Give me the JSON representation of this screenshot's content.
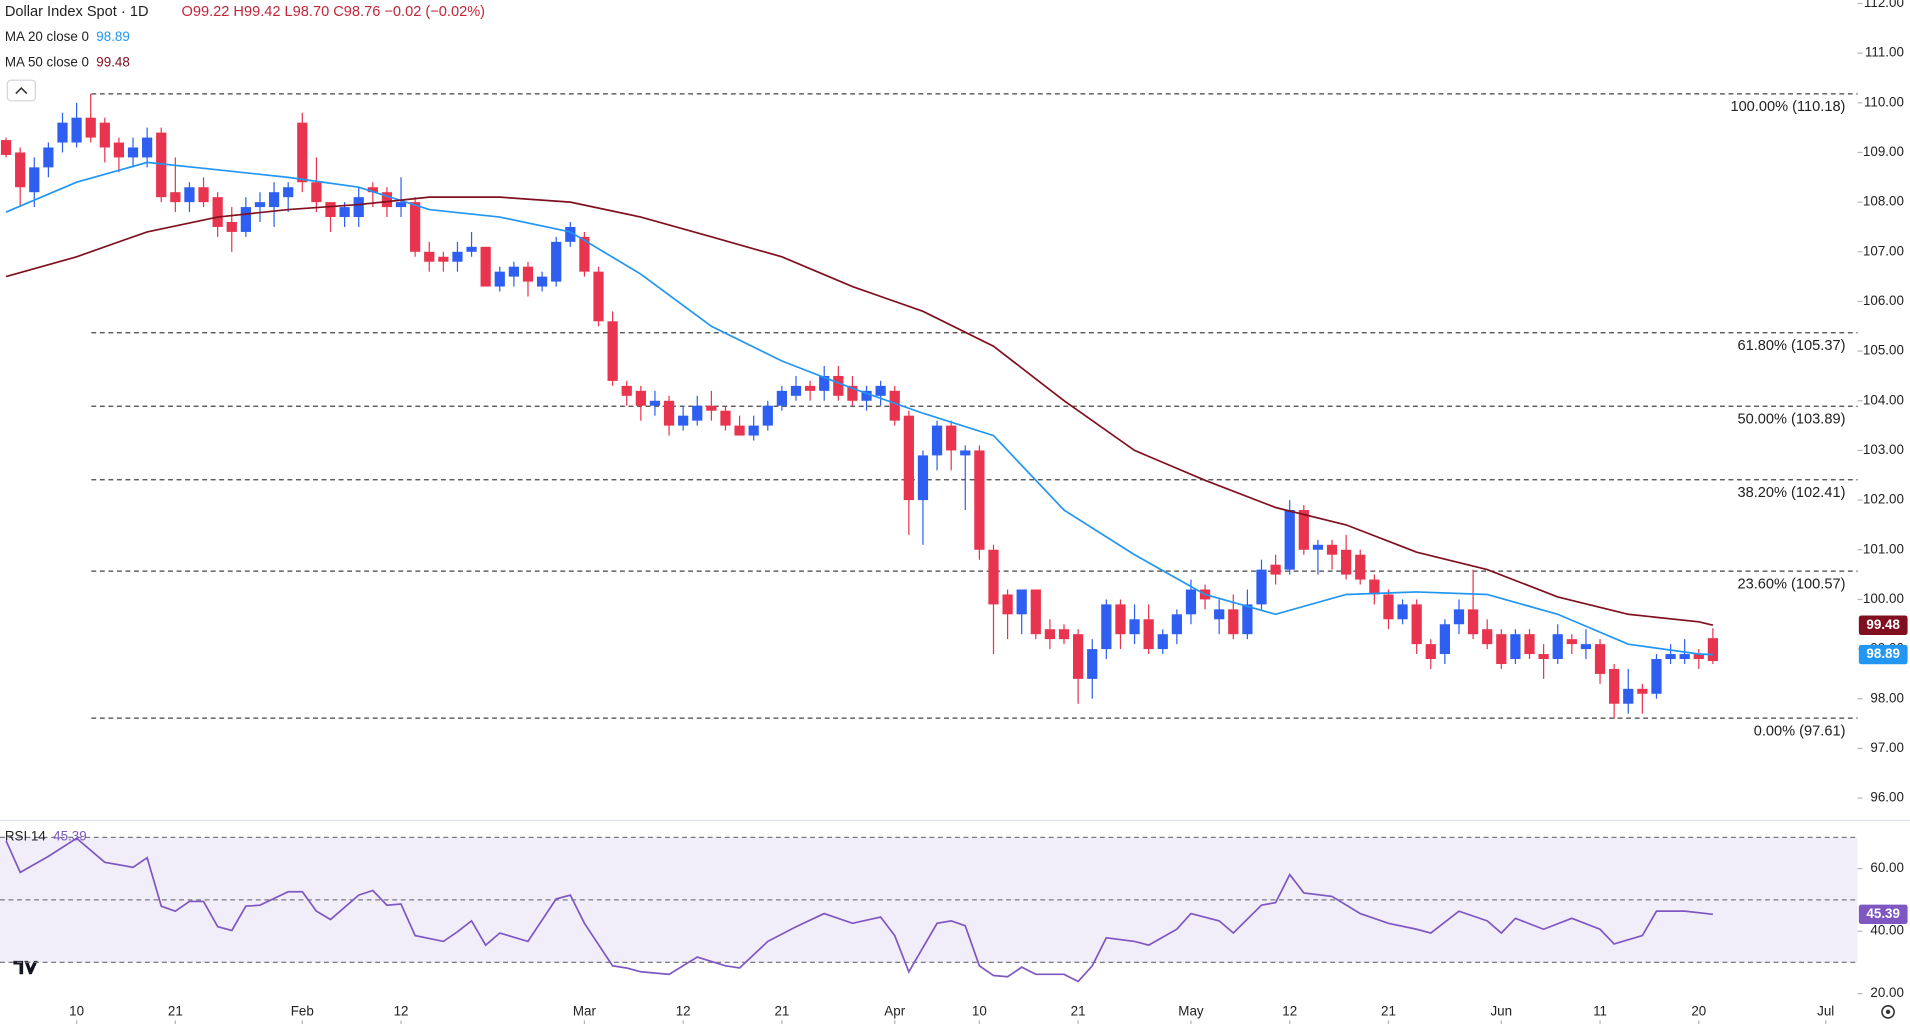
{
  "chart_data": [
    {
      "type": "candlestick",
      "title": "Dollar Index Spot · 1D",
      "subtitle": "O99.22 H99.42 L98.70 C98.76 −0.02 (−0.02%)",
      "up_color": "#2e5ff0",
      "down_color": "#e8344e",
      "candles": [
        [
          109.25,
          109.3,
          108.9,
          108.95
        ],
        [
          109.0,
          109.1,
          107.9,
          108.3
        ],
        [
          108.2,
          108.9,
          107.9,
          108.7
        ],
        [
          108.7,
          109.2,
          108.5,
          109.1
        ],
        [
          109.2,
          109.8,
          109.0,
          109.6
        ],
        [
          109.2,
          110.0,
          109.1,
          109.7
        ],
        [
          109.7,
          110.18,
          109.2,
          109.3
        ],
        [
          109.6,
          109.7,
          108.8,
          109.1
        ],
        [
          109.2,
          109.3,
          108.6,
          108.9
        ],
        [
          108.9,
          109.3,
          108.7,
          109.1
        ],
        [
          108.9,
          109.5,
          108.7,
          109.3
        ],
        [
          109.4,
          109.5,
          108.0,
          108.1
        ],
        [
          108.2,
          108.9,
          107.8,
          108.0
        ],
        [
          108.0,
          108.4,
          107.8,
          108.3
        ],
        [
          108.3,
          108.5,
          107.9,
          108.0
        ],
        [
          108.1,
          108.2,
          107.3,
          107.5
        ],
        [
          107.6,
          107.9,
          107.0,
          107.4
        ],
        [
          107.4,
          108.1,
          107.3,
          107.9
        ],
        [
          107.9,
          108.2,
          107.6,
          108.0
        ],
        [
          107.9,
          108.4,
          107.5,
          108.2
        ],
        [
          108.1,
          108.4,
          107.8,
          108.3
        ],
        [
          109.6,
          109.8,
          108.2,
          108.4
        ],
        [
          108.4,
          108.9,
          107.8,
          108.0
        ],
        [
          108.0,
          108.0,
          107.4,
          107.7
        ],
        [
          107.7,
          108.0,
          107.5,
          107.9
        ],
        [
          107.7,
          108.3,
          107.5,
          108.1
        ],
        [
          108.3,
          108.4,
          107.9,
          108.2
        ],
        [
          108.2,
          108.3,
          107.7,
          107.9
        ],
        [
          107.9,
          108.5,
          107.7,
          108.0
        ],
        [
          108.0,
          108.1,
          106.9,
          107.0
        ],
        [
          107.0,
          107.2,
          106.6,
          106.8
        ],
        [
          106.9,
          107.0,
          106.6,
          106.8
        ],
        [
          106.8,
          107.2,
          106.6,
          107.0
        ],
        [
          107.0,
          107.4,
          106.9,
          107.1
        ],
        [
          107.1,
          107.1,
          106.3,
          106.3
        ],
        [
          106.3,
          106.7,
          106.2,
          106.6
        ],
        [
          106.5,
          106.8,
          106.3,
          106.7
        ],
        [
          106.7,
          106.8,
          106.1,
          106.4
        ],
        [
          106.3,
          106.6,
          106.2,
          106.5
        ],
        [
          106.4,
          107.3,
          106.3,
          107.2
        ],
        [
          107.2,
          107.6,
          107.1,
          107.5
        ],
        [
          107.3,
          107.4,
          106.5,
          106.6
        ],
        [
          106.6,
          106.7,
          105.5,
          105.6
        ],
        [
          105.6,
          105.8,
          104.3,
          104.4
        ],
        [
          104.3,
          104.4,
          103.9,
          104.1
        ],
        [
          104.2,
          104.3,
          103.6,
          103.9
        ],
        [
          103.9,
          104.2,
          103.7,
          104.0
        ],
        [
          104.0,
          104.1,
          103.3,
          103.5
        ],
        [
          103.5,
          103.9,
          103.4,
          103.7
        ],
        [
          103.6,
          104.1,
          103.5,
          103.9
        ],
        [
          103.9,
          104.2,
          103.6,
          103.8
        ],
        [
          103.8,
          103.9,
          103.4,
          103.5
        ],
        [
          103.5,
          103.7,
          103.3,
          103.3
        ],
        [
          103.3,
          103.7,
          103.2,
          103.5
        ],
        [
          103.5,
          104.0,
          103.4,
          103.9
        ],
        [
          103.9,
          104.3,
          103.8,
          104.2
        ],
        [
          104.1,
          104.5,
          104.0,
          104.3
        ],
        [
          104.3,
          104.4,
          104.0,
          104.2
        ],
        [
          104.2,
          104.7,
          104.0,
          104.5
        ],
        [
          104.5,
          104.7,
          104.0,
          104.1
        ],
        [
          104.3,
          104.5,
          103.9,
          104.0
        ],
        [
          104.0,
          104.3,
          103.8,
          104.2
        ],
        [
          104.1,
          104.4,
          103.9,
          104.3
        ],
        [
          104.2,
          104.3,
          103.5,
          103.6
        ],
        [
          103.7,
          103.8,
          101.3,
          102.0
        ],
        [
          102.0,
          103.0,
          101.1,
          102.9
        ],
        [
          102.9,
          103.6,
          102.6,
          103.5
        ],
        [
          103.5,
          103.6,
          102.6,
          103.0
        ],
        [
          102.9,
          103.1,
          101.8,
          103.0
        ],
        [
          103.0,
          103.1,
          100.8,
          101.0
        ],
        [
          101.0,
          101.1,
          98.9,
          99.9
        ],
        [
          100.1,
          100.2,
          99.2,
          99.7
        ],
        [
          99.7,
          100.2,
          99.3,
          100.2
        ],
        [
          100.2,
          100.2,
          99.2,
          99.3
        ],
        [
          99.4,
          99.6,
          99.0,
          99.2
        ],
        [
          99.4,
          99.5,
          99.1,
          99.2
        ],
        [
          99.3,
          99.4,
          97.9,
          98.4
        ],
        [
          98.4,
          99.2,
          98.0,
          99.0
        ],
        [
          99.0,
          100.0,
          98.8,
          99.9
        ],
        [
          99.9,
          100.0,
          99.0,
          99.3
        ],
        [
          99.3,
          99.9,
          99.1,
          99.6
        ],
        [
          99.6,
          99.9,
          98.9,
          99.0
        ],
        [
          99.0,
          99.4,
          98.9,
          99.3
        ],
        [
          99.3,
          99.8,
          99.1,
          99.7
        ],
        [
          99.7,
          100.4,
          99.5,
          100.2
        ],
        [
          100.2,
          100.3,
          99.8,
          100.0
        ],
        [
          99.6,
          100.0,
          99.3,
          99.8
        ],
        [
          99.8,
          100.1,
          99.2,
          99.3
        ],
        [
          99.3,
          100.2,
          99.2,
          99.9
        ],
        [
          99.9,
          100.8,
          99.8,
          100.6
        ],
        [
          100.7,
          100.9,
          100.3,
          100.5
        ],
        [
          100.6,
          102.0,
          100.5,
          101.8
        ],
        [
          101.8,
          101.9,
          100.9,
          101.0
        ],
        [
          101.0,
          101.2,
          100.5,
          101.1
        ],
        [
          101.1,
          101.2,
          100.6,
          100.9
        ],
        [
          101.0,
          101.3,
          100.4,
          100.5
        ],
        [
          100.9,
          101.0,
          100.3,
          100.4
        ],
        [
          100.4,
          100.5,
          99.9,
          100.1
        ],
        [
          100.1,
          100.2,
          99.4,
          99.6
        ],
        [
          99.6,
          100.0,
          99.5,
          99.9
        ],
        [
          99.9,
          100.0,
          98.9,
          99.1
        ],
        [
          99.1,
          99.2,
          98.6,
          98.8
        ],
        [
          98.9,
          99.6,
          98.7,
          99.5
        ],
        [
          99.5,
          100.0,
          99.3,
          99.8
        ],
        [
          99.8,
          100.6,
          99.2,
          99.3
        ],
        [
          99.4,
          99.6,
          99.0,
          99.1
        ],
        [
          99.3,
          99.4,
          98.6,
          98.7
        ],
        [
          98.8,
          99.4,
          98.7,
          99.3
        ],
        [
          99.3,
          99.4,
          98.8,
          98.9
        ],
        [
          98.9,
          99.1,
          98.4,
          98.8
        ],
        [
          98.8,
          99.5,
          98.7,
          99.3
        ],
        [
          99.2,
          99.3,
          98.9,
          99.1
        ],
        [
          99.0,
          99.4,
          98.8,
          99.1
        ],
        [
          99.1,
          99.2,
          98.3,
          98.5
        ],
        [
          98.6,
          98.7,
          97.6,
          97.9
        ],
        [
          97.9,
          98.6,
          97.7,
          98.2
        ],
        [
          98.2,
          98.3,
          97.7,
          98.1
        ],
        [
          98.1,
          98.9,
          98.0,
          98.8
        ],
        [
          98.8,
          99.1,
          98.7,
          98.9
        ],
        [
          98.8,
          99.2,
          98.7,
          98.9
        ],
        [
          98.9,
          99.0,
          98.6,
          98.8
        ],
        [
          99.22,
          99.42,
          98.7,
          98.76
        ]
      ],
      "series": [
        {
          "name": "MA 20 close 0",
          "color": "#2196f3",
          "last_label": "98.89",
          "x": [
            0,
            5,
            10,
            15,
            20,
            25,
            30,
            35,
            40,
            45,
            50,
            55,
            60,
            65,
            70,
            75,
            80,
            85,
            90,
            95,
            100,
            105,
            110,
            115,
            120,
            121
          ],
          "values": [
            107.8,
            108.4,
            108.8,
            108.65,
            108.5,
            108.3,
            107.85,
            107.7,
            107.4,
            106.55,
            105.5,
            104.8,
            104.25,
            103.75,
            103.3,
            101.8,
            100.9,
            100.1,
            99.7,
            100.1,
            100.15,
            100.1,
            99.7,
            99.1,
            98.9,
            98.89
          ]
        },
        {
          "name": "MA 50 close 0",
          "color": "#801020",
          "last_label": "99.48",
          "x": [
            0,
            5,
            10,
            15,
            20,
            25,
            30,
            35,
            40,
            45,
            50,
            55,
            60,
            65,
            70,
            75,
            80,
            85,
            90,
            95,
            100,
            105,
            110,
            115,
            120,
            121
          ],
          "values": [
            106.5,
            106.9,
            107.4,
            107.7,
            107.85,
            107.95,
            108.1,
            108.1,
            108.0,
            107.7,
            107.3,
            106.9,
            106.3,
            105.8,
            105.1,
            104.0,
            103.0,
            102.4,
            101.85,
            101.5,
            100.95,
            100.6,
            100.05,
            99.7,
            99.55,
            99.48
          ]
        }
      ],
      "levels": [
        {
          "value": 110.18,
          "label": "100.00% (110.18)"
        },
        {
          "value": 105.37,
          "label": "61.80% (105.37)"
        },
        {
          "value": 103.89,
          "label": "50.00% (103.89)"
        },
        {
          "value": 102.41,
          "label": "38.20% (102.41)"
        },
        {
          "value": 100.57,
          "label": "23.60% (100.57)"
        },
        {
          "value": 97.61,
          "label": "0.00% (97.61)"
        }
      ],
      "xlim": [
        -0.43,
        131.26
      ],
      "ylim": [
        95.56,
        112.07
      ],
      "yticks": [
        {
          "value": 96,
          "label": "96.00"
        },
        {
          "value": 97,
          "label": "97.00"
        },
        {
          "value": 98,
          "label": "98.00"
        },
        {
          "value": 99,
          "label": "99.00"
        },
        {
          "value": 100,
          "label": "100.00"
        },
        {
          "value": 101,
          "label": "101.00"
        },
        {
          "value": 102,
          "label": "102.00"
        },
        {
          "value": 103,
          "label": "103.00"
        },
        {
          "value": 104,
          "label": "104.00"
        },
        {
          "value": 105,
          "label": "105.00"
        },
        {
          "value": 106,
          "label": "106.00"
        },
        {
          "value": 107,
          "label": "107.00"
        },
        {
          "value": 108,
          "label": "108.00"
        },
        {
          "value": 109,
          "label": "109.00"
        },
        {
          "value": 110,
          "label": "110.00"
        },
        {
          "value": 111,
          "label": "111.00"
        },
        {
          "value": 112,
          "label": "112.00"
        }
      ]
    },
    {
      "type": "line",
      "title": "RSI 14",
      "last_label": "45.39",
      "color": "#7e57c2",
      "levels": [
        70,
        50,
        30
      ],
      "x": [
        0,
        1,
        3,
        5,
        7,
        9,
        10,
        11,
        12,
        13,
        14,
        15,
        16,
        17,
        18,
        20,
        21,
        22,
        23,
        25,
        26,
        27,
        28,
        29,
        31,
        32,
        33,
        34,
        35,
        37,
        39,
        40,
        41,
        43,
        44,
        45,
        47,
        49,
        51,
        52,
        54,
        56,
        58,
        60,
        62,
        63,
        64,
        66,
        67,
        68,
        69,
        70,
        71,
        72,
        73,
        75,
        76,
        77,
        78,
        80,
        81,
        83,
        84,
        86,
        87,
        89,
        90,
        91,
        92,
        94,
        96,
        98,
        100,
        101,
        103,
        105,
        106,
        107,
        109,
        111,
        113,
        114,
        116,
        117,
        119,
        121
      ],
      "values": [
        68.9,
        58.8,
        63.9,
        69.7,
        62,
        60.4,
        63.5,
        48,
        46.4,
        49.5,
        49.5,
        41.4,
        40.2,
        48,
        48.3,
        52.6,
        52.6,
        46.4,
        43.7,
        51.5,
        53,
        48.3,
        48.7,
        38.6,
        36.7,
        39.8,
        43.3,
        35.5,
        39.4,
        36.7,
        50.3,
        51.5,
        42.5,
        28.9,
        28.2,
        27,
        26.2,
        31.7,
        28.9,
        28.2,
        36.7,
        41.4,
        45.6,
        42.5,
        44.5,
        38.6,
        27,
        42.5,
        43.3,
        41.7,
        28.9,
        25.8,
        25.4,
        28.5,
        26.2,
        26.2,
        23.9,
        28.9,
        37.9,
        36.7,
        35.5,
        40.6,
        45.6,
        43.3,
        39.4,
        48.3,
        49.1,
        58.1,
        52.2,
        51.1,
        45.6,
        42.5,
        40.6,
        39.4,
        46.4,
        43.3,
        39.4,
        44.1,
        40.6,
        44.1,
        40.6,
        35.9,
        38.6,
        46.4,
        46.4,
        45.39
      ],
      "xlim": [
        -0.43,
        131.26
      ],
      "ylim": [
        10.3,
        74.4
      ],
      "yticks": [
        {
          "value": 20,
          "label": "20.00"
        },
        {
          "value": 40,
          "label": "40.00"
        },
        {
          "value": 60,
          "label": "60.00"
        }
      ],
      "xticks": [
        {
          "value": 5,
          "label": "10"
        },
        {
          "value": 12,
          "label": "21"
        },
        {
          "value": 21,
          "label": "Feb"
        },
        {
          "value": 28,
          "label": "12"
        },
        {
          "value": 41,
          "label": "Mar"
        },
        {
          "value": 48,
          "label": "12"
        },
        {
          "value": 55,
          "label": "21"
        },
        {
          "value": 63,
          "label": "Apr"
        },
        {
          "value": 69,
          "label": "10"
        },
        {
          "value": 76,
          "label": "21"
        },
        {
          "value": 84,
          "label": "May"
        },
        {
          "value": 91,
          "label": "12"
        },
        {
          "value": 98,
          "label": "21"
        },
        {
          "value": 106,
          "label": "Jun"
        },
        {
          "value": 113,
          "label": "11"
        },
        {
          "value": 120,
          "label": "20"
        },
        {
          "value": 129,
          "label": "Jul"
        }
      ]
    }
  ]
}
